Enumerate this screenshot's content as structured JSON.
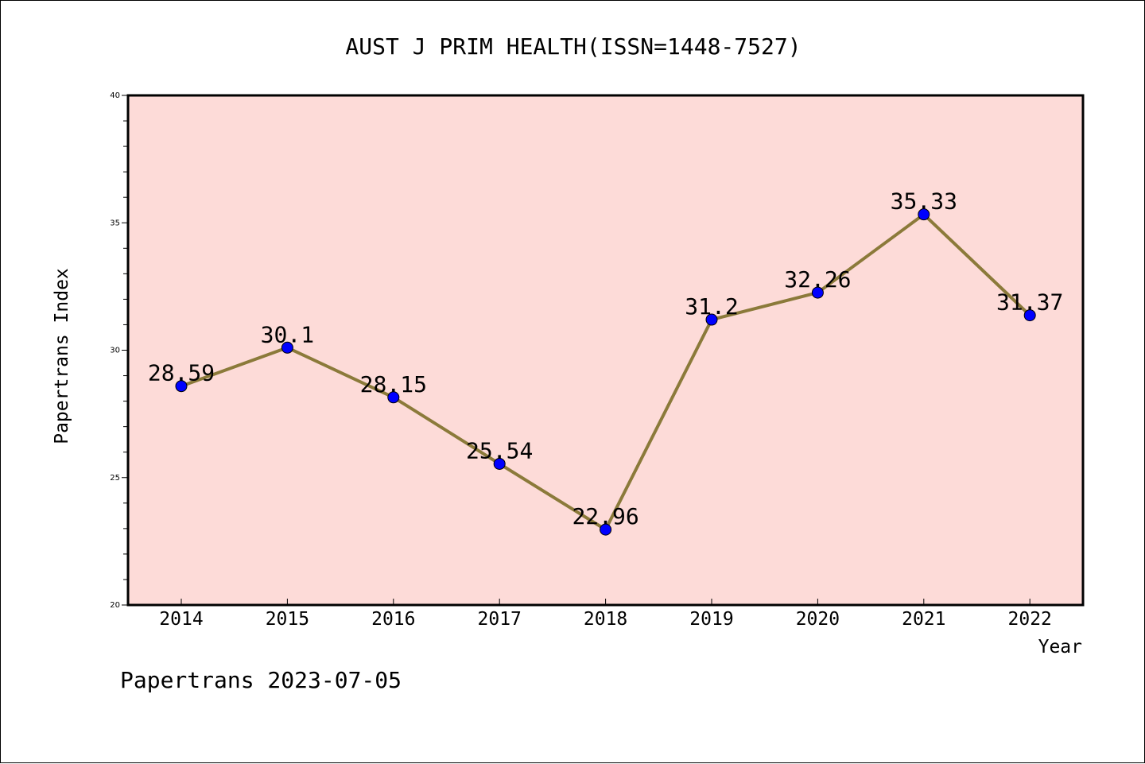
{
  "chart_data": {
    "type": "line",
    "title": "AUST J PRIM HEALTH(ISSN=1448-7527)",
    "xlabel": "Year",
    "ylabel": "Papertrans Index",
    "footer": "Papertrans 2023-07-05",
    "categories": [
      "2014",
      "2015",
      "2016",
      "2017",
      "2018",
      "2019",
      "2020",
      "2021",
      "2022"
    ],
    "values": [
      28.59,
      30.1,
      28.15,
      25.54,
      22.96,
      31.2,
      32.26,
      35.33,
      31.37
    ],
    "value_labels": [
      "28.59",
      "30.1",
      "28.15",
      "25.54",
      "22.96",
      "31.2",
      "32.26",
      "35.33",
      "31.37"
    ],
    "ylim": [
      20,
      40
    ],
    "yticks": [
      "20",
      "25",
      "30",
      "35",
      "40"
    ],
    "grid": false,
    "colors": {
      "plot_background": "#fddbd8",
      "line": "#8b7a3a",
      "marker": "#0000ff",
      "frame": "#000000"
    }
  }
}
